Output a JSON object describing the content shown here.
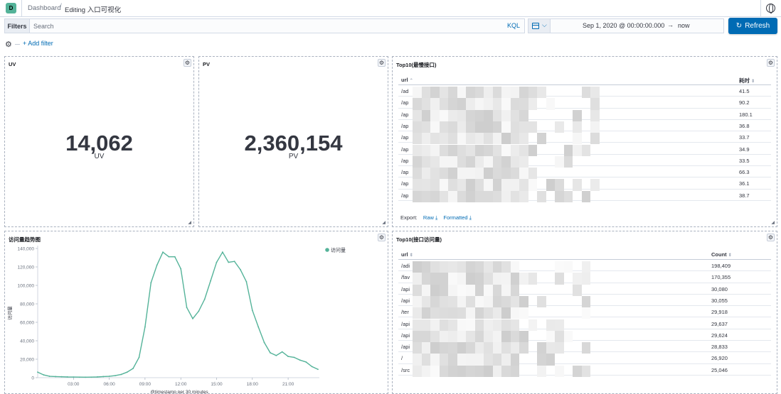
{
  "header": {
    "logo_letter": "D",
    "breadcrumb_root": "Dashboard",
    "breadcrumb_sep": "/",
    "breadcrumb_current": "Editing 入口可视化"
  },
  "query": {
    "filters_label": "Filters",
    "search_placeholder": "Search",
    "language": "KQL",
    "add_filter": "+ Add filter"
  },
  "time": {
    "start": "Sep 1, 2020 @ 00:00:00.000",
    "arrow": "→",
    "end": "now",
    "refresh_label": "Refresh"
  },
  "panels": {
    "uv": {
      "title": "UV",
      "value": "14,062",
      "label": "UV"
    },
    "pv": {
      "title": "PV",
      "value": "2,360,154",
      "label": "PV"
    },
    "slow": {
      "title": "Top10(最慢接口)",
      "col_url": "url",
      "col_value": "耗时",
      "rows": [
        {
          "url": "/ad",
          "value": "41.5"
        },
        {
          "url": "/ap",
          "value": "90.2"
        },
        {
          "url": "/ap",
          "value": "180.1"
        },
        {
          "url": "/ap",
          "value": "36.8"
        },
        {
          "url": "/ap",
          "value": "33.7"
        },
        {
          "url": "/ap",
          "value": "34.9"
        },
        {
          "url": "/ap",
          "value": "33.5"
        },
        {
          "url": "/ap",
          "value": "66.3"
        },
        {
          "url": "/ap",
          "value": "36.1"
        },
        {
          "url": "/ap",
          "value": "38.7"
        }
      ],
      "export_label": "Export:",
      "export_raw": "Raw",
      "export_formatted": "Formatted"
    },
    "trend": {
      "title": "访问量趋势图"
    },
    "visits": {
      "title": "Top10(接口访问量)",
      "col_url": "url",
      "col_value": "Count",
      "rows": [
        {
          "url": "/adi",
          "value": "198,409"
        },
        {
          "url": "/fav",
          "value": "170,355"
        },
        {
          "url": "/api",
          "value": "30,080"
        },
        {
          "url": "/api",
          "value": "30,055"
        },
        {
          "url": "/ter",
          "value": "29,918"
        },
        {
          "url": "/api",
          "value": "29,637"
        },
        {
          "url": "/api",
          "value": "29,624"
        },
        {
          "url": "/api",
          "value": "28,833"
        },
        {
          "url": "/",
          "value": "26,920"
        },
        {
          "url": "/src",
          "value": "25,046"
        }
      ]
    }
  },
  "colors": {
    "accent": "#006bb4",
    "series": "#54b399"
  },
  "chart_data": {
    "type": "line",
    "x": [
      "00:00",
      "00:30",
      "01:00",
      "01:30",
      "02:00",
      "02:30",
      "03:00",
      "03:30",
      "04:00",
      "04:30",
      "05:00",
      "05:30",
      "06:00",
      "06:30",
      "07:00",
      "07:30",
      "08:00",
      "08:30",
      "09:00",
      "09:30",
      "10:00",
      "10:30",
      "11:00",
      "11:30",
      "12:00",
      "12:30",
      "13:00",
      "13:30",
      "14:00",
      "14:30",
      "15:00",
      "15:30",
      "16:00",
      "16:30",
      "17:00",
      "17:30",
      "18:00",
      "18:30",
      "19:00",
      "19:30",
      "20:00",
      "20:30",
      "21:00",
      "21:30",
      "22:00",
      "22:30",
      "23:00",
      "23:30"
    ],
    "series": [
      {
        "name": "访问量",
        "values": [
          6000,
          3000,
          1500,
          1200,
          1000,
          800,
          700,
          600,
          500,
          600,
          800,
          1200,
          1500,
          2200,
          3500,
          6000,
          10000,
          22000,
          55000,
          103000,
          122000,
          136000,
          131000,
          131000,
          118000,
          76000,
          64000,
          72000,
          85000,
          105000,
          125000,
          136000,
          125000,
          126000,
          117000,
          104000,
          73000,
          55000,
          38000,
          27000,
          24000,
          28000,
          23000,
          22000,
          19000,
          17000,
          12000,
          9000
        ]
      }
    ],
    "xticks": [
      "03:00",
      "06:00",
      "09:00",
      "12:00",
      "15:00",
      "18:00",
      "21:00"
    ],
    "yticks": [
      "0",
      "20,000",
      "40,000",
      "60,000",
      "80,000",
      "100,000",
      "120,000",
      "140,000"
    ],
    "ylim": [
      0,
      140000
    ],
    "ylabel": "访问量",
    "xlabel": "@timestamp per 30 minutes",
    "legend": "top-right"
  }
}
